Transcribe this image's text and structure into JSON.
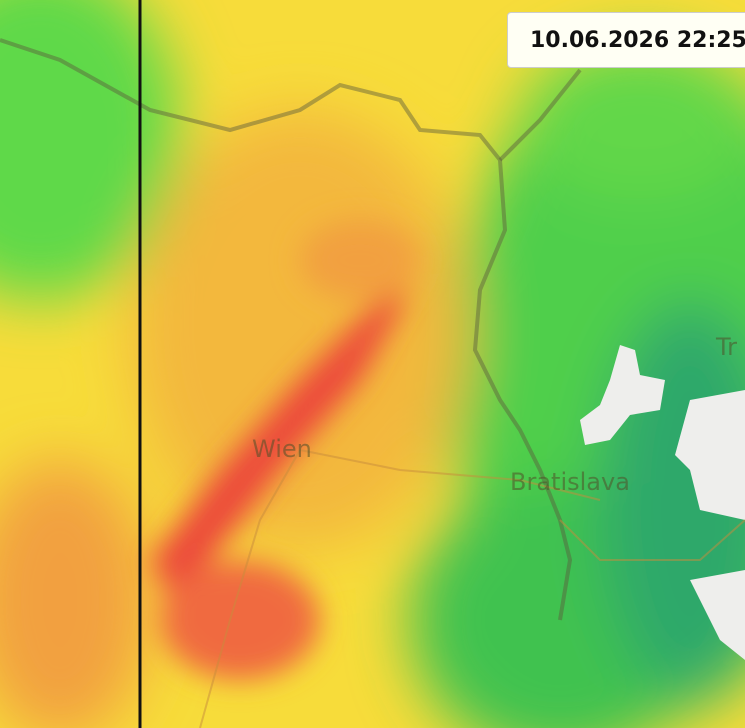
{
  "timestamp": "10.06.2026 22:25",
  "places": [
    "Wien",
    "Bratislava",
    "Tr"
  ]
}
